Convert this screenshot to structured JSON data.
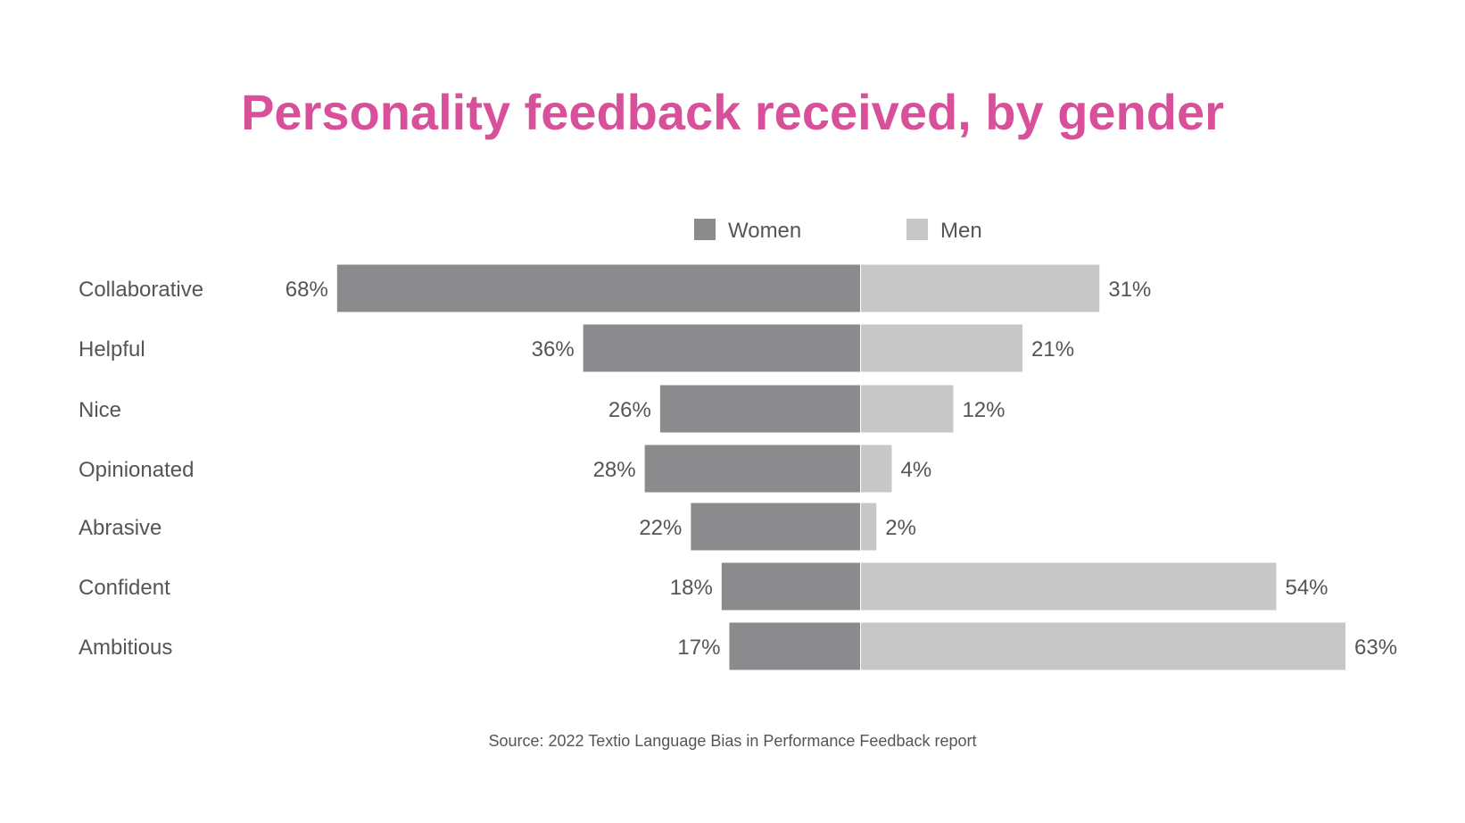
{
  "colors": {
    "title": "#d9509a",
    "women": "#8b8a8c",
    "men": "#c8c7c8",
    "text": "#555555",
    "background": "#ffffff"
  },
  "chart_data": {
    "type": "bar",
    "orientation": "horizontal-diverging",
    "title": "Personality feedback received, by gender",
    "categories": [
      "Collaborative",
      "Helpful",
      "Nice",
      "Opinionated",
      "Abrasive",
      "Confident",
      "Ambitious"
    ],
    "series": [
      {
        "name": "Women",
        "values": [
          68,
          36,
          26,
          28,
          22,
          18,
          17
        ],
        "labels": [
          "68%",
          "36%",
          "26%",
          "28%",
          "22%",
          "18%",
          "17%"
        ]
      },
      {
        "name": "Men",
        "values": [
          31,
          21,
          12,
          4,
          2,
          54,
          63
        ],
        "labels": [
          "31%",
          "21%",
          "12%",
          "4%",
          "2%",
          "54%",
          "63%"
        ]
      }
    ],
    "unit": "%",
    "legend_position": "top-center",
    "grid": false,
    "source": "Source: 2022 Textio Language Bias in Performance Feedback report"
  }
}
